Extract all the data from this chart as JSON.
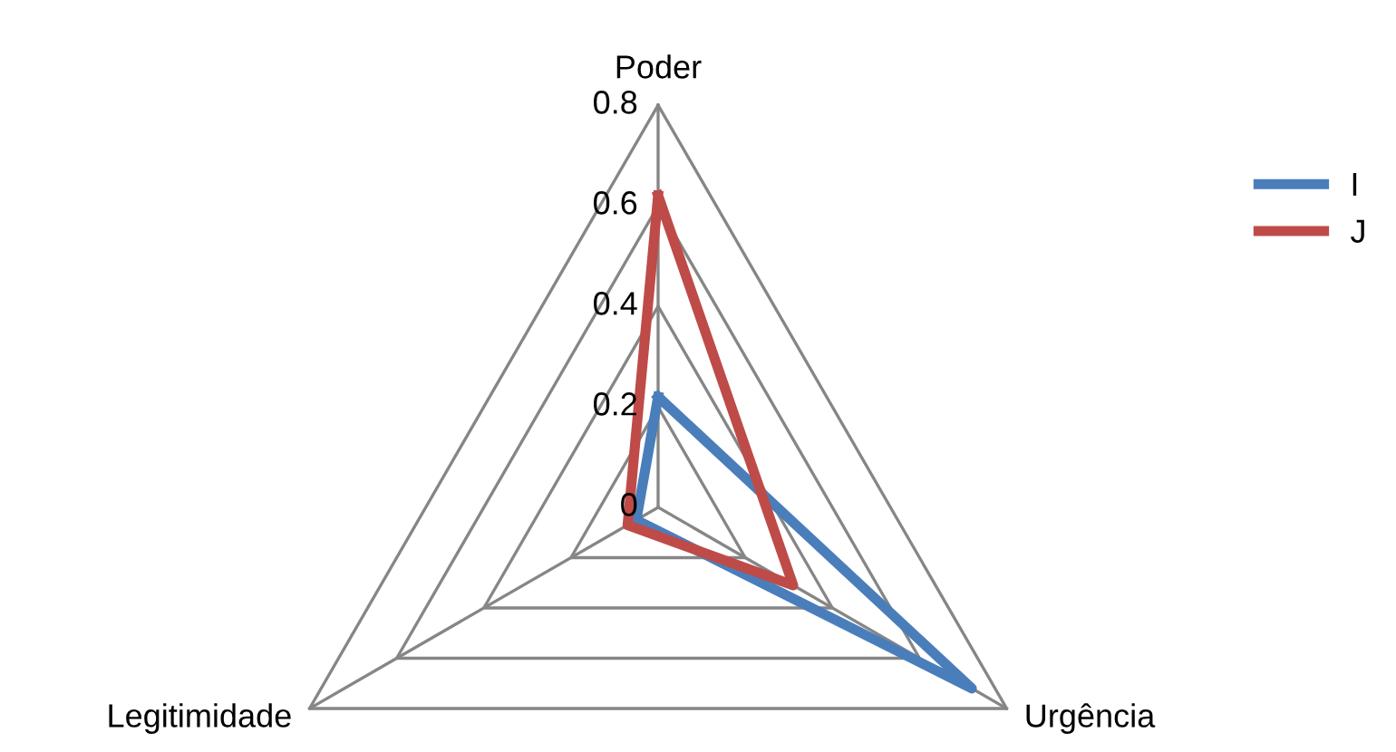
{
  "chart_data": {
    "type": "radar",
    "categories": [
      "Poder",
      "Urgência",
      "Legitimidade"
    ],
    "series": [
      {
        "name": "I",
        "color": "#4a7ebb",
        "values": [
          0.22,
          0.72,
          0.05
        ]
      },
      {
        "name": "J",
        "color": "#be4b48",
        "values": [
          0.62,
          0.31,
          0.07
        ]
      }
    ],
    "ylim": [
      0,
      0.8
    ],
    "yticks": [
      {
        "value": 0,
        "label": "0"
      },
      0.2,
      0.4,
      0.6,
      0.8
    ],
    "grid": true,
    "legend": "right",
    "marker": "none",
    "line_style": "solid"
  }
}
